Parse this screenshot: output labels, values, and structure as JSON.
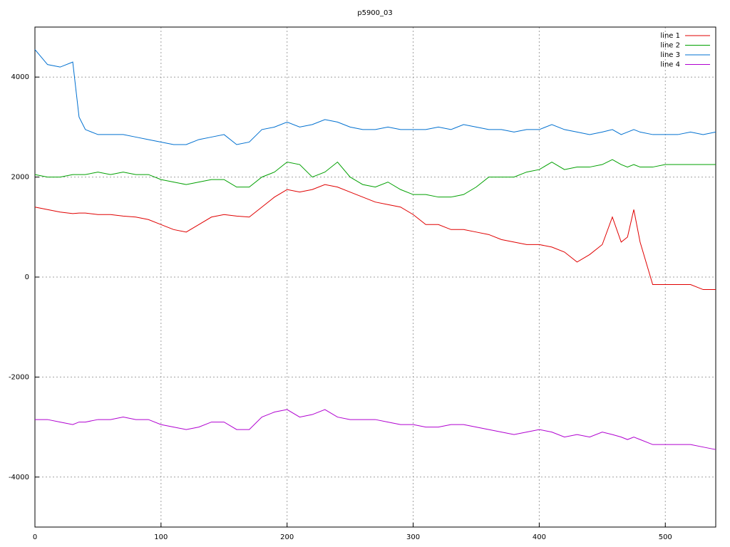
{
  "chart_data": {
    "type": "line",
    "title": "p5900_03",
    "x": [
      0,
      10,
      20,
      30,
      35,
      40,
      50,
      60,
      70,
      80,
      90,
      100,
      110,
      120,
      130,
      140,
      150,
      160,
      170,
      180,
      190,
      200,
      210,
      220,
      230,
      240,
      250,
      260,
      270,
      280,
      290,
      300,
      310,
      320,
      330,
      340,
      350,
      360,
      370,
      380,
      390,
      400,
      410,
      420,
      430,
      440,
      450,
      458,
      465,
      470,
      475,
      480,
      490,
      500,
      510,
      520,
      530,
      540
    ],
    "series": [
      {
        "name": "line 1",
        "color": "#e00000",
        "values": [
          1400,
          1350,
          1300,
          1270,
          1280,
          1280,
          1250,
          1250,
          1220,
          1200,
          1150,
          1050,
          950,
          900,
          1050,
          1200,
          1250,
          1220,
          1200,
          1400,
          1600,
          1750,
          1700,
          1750,
          1850,
          1800,
          1700,
          1600,
          1500,
          1450,
          1400,
          1250,
          1050,
          1050,
          950,
          950,
          900,
          850,
          750,
          700,
          650,
          650,
          600,
          500,
          300,
          450,
          650,
          1200,
          700,
          800,
          1350,
          700,
          -150,
          -150,
          -150,
          -150,
          -250,
          -250
        ]
      },
      {
        "name": "line 2",
        "color": "#00a000",
        "values": [
          2050,
          2000,
          2000,
          2050,
          2050,
          2050,
          2100,
          2050,
          2100,
          2050,
          2050,
          1950,
          1900,
          1850,
          1900,
          1950,
          1950,
          1800,
          1800,
          2000,
          2100,
          2300,
          2250,
          2000,
          2100,
          2300,
          2000,
          1850,
          1800,
          1900,
          1750,
          1650,
          1650,
          1600,
          1600,
          1650,
          1800,
          2000,
          2000,
          2000,
          2100,
          2150,
          2300,
          2150,
          2200,
          2200,
          2250,
          2350,
          2250,
          2200,
          2250,
          2200,
          2200,
          2250,
          2250,
          2250,
          2250,
          2250
        ]
      },
      {
        "name": "line 3",
        "color": "#0070d0",
        "values": [
          4550,
          4250,
          4200,
          4300,
          3200,
          2950,
          2850,
          2850,
          2850,
          2800,
          2750,
          2700,
          2650,
          2650,
          2750,
          2800,
          2850,
          2650,
          2700,
          2950,
          3000,
          3100,
          3000,
          3050,
          3150,
          3100,
          3000,
          2950,
          2950,
          3000,
          2950,
          2950,
          2950,
          3000,
          2950,
          3050,
          3000,
          2950,
          2950,
          2900,
          2950,
          2950,
          3050,
          2950,
          2900,
          2850,
          2900,
          2950,
          2850,
          2900,
          2950,
          2900,
          2850,
          2850,
          2850,
          2900,
          2850,
          2900
        ]
      },
      {
        "name": "line 4",
        "color": "#b000d0",
        "values": [
          -2850,
          -2850,
          -2900,
          -2950,
          -2900,
          -2900,
          -2850,
          -2850,
          -2800,
          -2850,
          -2850,
          -2950,
          -3000,
          -3050,
          -3000,
          -2900,
          -2900,
          -3050,
          -3050,
          -2800,
          -2700,
          -2650,
          -2800,
          -2750,
          -2650,
          -2800,
          -2850,
          -2850,
          -2850,
          -2900,
          -2950,
          -2950,
          -3000,
          -3000,
          -2950,
          -2950,
          -3000,
          -3050,
          -3100,
          -3150,
          -3100,
          -3050,
          -3100,
          -3200,
          -3150,
          -3200,
          -3100,
          -3150,
          -3200,
          -3250,
          -3200,
          -3250,
          -3350,
          -3350,
          -3350,
          -3350,
          -3400,
          -3450
        ]
      }
    ],
    "xlim": [
      0,
      540
    ],
    "xticks": [
      0,
      100,
      200,
      300,
      400,
      500
    ],
    "ylim": [
      -5000,
      5000
    ],
    "yticks": [
      -4000,
      -2000,
      0,
      2000,
      4000
    ],
    "grid": true,
    "legend": "top-right"
  }
}
